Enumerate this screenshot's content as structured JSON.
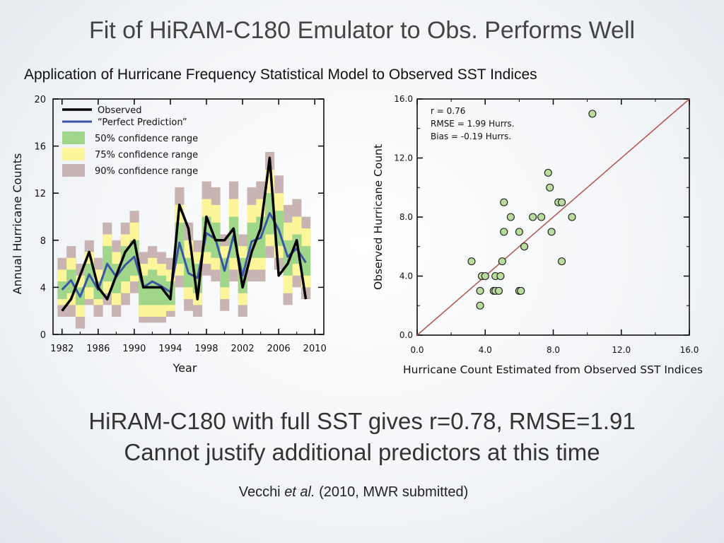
{
  "slide": {
    "title": "Fit of HiRAM-C180 Emulator to Obs. Performs Well",
    "figure_title": "Application of Hurricane Frequency Statistical Model to Observed SST Indices",
    "line1": "HiRAM-C180 with full SST gives r=0.78, RMSE=1.91",
    "line2": "Cannot justify additional predictors at this time",
    "citation_author": "Vecchi ",
    "citation_etal": "et al.",
    "citation_rest": " (2010, MWR submitted)"
  },
  "chart_data": [
    {
      "type": "line",
      "xlabel": "Year",
      "ylabel": "Annual Hurricane Counts",
      "xlim": [
        1981,
        2011
      ],
      "ylim": [
        0,
        20
      ],
      "x_ticks": [
        1982,
        1986,
        1990,
        1994,
        1998,
        2002,
        2006,
        2010
      ],
      "y_ticks": [
        0,
        4,
        8,
        12,
        16,
        20
      ],
      "x": [
        1982,
        1983,
        1984,
        1985,
        1986,
        1987,
        1988,
        1989,
        1990,
        1991,
        1992,
        1993,
        1994,
        1995,
        1996,
        1997,
        1998,
        1999,
        2000,
        2001,
        2002,
        2003,
        2004,
        2005,
        2006,
        2007,
        2008,
        2009
      ],
      "series": [
        {
          "name": "Observed",
          "color": "#000000",
          "values": [
            2,
            3,
            5,
            7,
            4,
            3,
            5,
            7,
            8,
            4,
            4,
            4,
            3,
            11,
            9,
            3,
            10,
            8,
            8,
            9,
            4,
            7,
            9,
            15,
            5,
            6,
            8,
            3
          ]
        },
        {
          "name": "“Perfect Prediction”",
          "color": "#3a55a4",
          "values": [
            3.8,
            4.6,
            3.2,
            5.1,
            3.8,
            6.0,
            4.9,
            5.9,
            6.6,
            4.0,
            4.5,
            4.1,
            3.6,
            7.8,
            5.2,
            4.8,
            8.6,
            8.1,
            5.4,
            8.4,
            5.0,
            7.9,
            8.2,
            10.3,
            8.9,
            6.6,
            7.3,
            6.1
          ]
        }
      ],
      "bands": [
        {
          "name": "50% confidence range",
          "color": "#9fd68a",
          "lower": [
            3,
            3.5,
            2.5,
            4,
            3,
            4.5,
            3.5,
            4.5,
            5,
            2.5,
            2.5,
            2.5,
            2.5,
            6,
            4,
            3.5,
            7,
            6.5,
            4,
            6.5,
            3.5,
            6.5,
            6.5,
            8.5,
            7.5,
            5,
            6,
            5
          ],
          "upper": [
            4.5,
            5.5,
            4,
            6,
            4.5,
            7.5,
            6,
            7.5,
            8,
            5,
            5.5,
            5,
            4.5,
            9.5,
            6.5,
            6,
            10,
            9.5,
            6.5,
            10,
            6.5,
            9.5,
            10,
            12,
            10.5,
            8,
            8.5,
            7.5
          ]
        },
        {
          "name": "75% confidence range",
          "color": "#fdf59a",
          "lower": [
            2.5,
            2.5,
            1.5,
            3,
            2.5,
            3.5,
            2.5,
            3.5,
            4.5,
            1.5,
            1.5,
            1.5,
            2,
            5,
            3,
            2.5,
            6,
            5.5,
            3,
            5.5,
            2.5,
            5.5,
            5.5,
            7.5,
            6.5,
            3.5,
            5,
            4
          ],
          "upper": [
            5.5,
            6.5,
            5,
            7,
            5.5,
            8.5,
            7,
            8.5,
            9.5,
            6,
            6.5,
            6,
            5.5,
            11,
            8,
            7,
            11.5,
            11,
            7.5,
            11.5,
            7.5,
            11,
            11.5,
            14,
            12,
            9.5,
            10,
            9
          ]
        },
        {
          "name": "90% confidence range",
          "color": "#c9b4b4",
          "lower": [
            1.5,
            1.5,
            0.5,
            2.5,
            1.5,
            2.5,
            1.5,
            2.5,
            3.5,
            1,
            1,
            1,
            1.5,
            4,
            2,
            1.5,
            5,
            4.5,
            2,
            4.5,
            1.5,
            4.5,
            4.5,
            6.5,
            5.5,
            2.5,
            4,
            3
          ],
          "upper": [
            6.5,
            7.5,
            6,
            8,
            6.5,
            9.5,
            8,
            9.5,
            10.5,
            7,
            7.5,
            7,
            6.5,
            12.5,
            9.5,
            8,
            13,
            12.5,
            8.5,
            13,
            8.5,
            12.5,
            13,
            15.5,
            13.5,
            11,
            11.5,
            10
          ]
        }
      ]
    },
    {
      "type": "scatter",
      "xlabel": "Hurricane Count Estimated from Observed SST Indices",
      "ylabel": "Observed Hurricane Count",
      "xlim": [
        0,
        16
      ],
      "ylim": [
        0,
        16
      ],
      "x_ticks": [
        0,
        4,
        8,
        12,
        16
      ],
      "y_ticks": [
        0,
        4,
        8,
        12,
        16
      ],
      "tick_labels": [
        "0.0",
        "4.0",
        "8.0",
        "12.0",
        "16.0"
      ],
      "annotations": [
        "r = 0.76",
        "RMSE = 1.99 Hurrs.",
        "Bias = -0.19 Hurrs."
      ],
      "line": {
        "from": [
          0,
          0
        ],
        "to": [
          16,
          16
        ],
        "color": "#b5524f"
      },
      "point_fill": "#b9dc9c",
      "points": [
        [
          3.2,
          5
        ],
        [
          3.7,
          2
        ],
        [
          3.7,
          3
        ],
        [
          3.8,
          4
        ],
        [
          4.0,
          4
        ],
        [
          4.5,
          3
        ],
        [
          4.6,
          3
        ],
        [
          4.6,
          4
        ],
        [
          4.8,
          3
        ],
        [
          4.9,
          4
        ],
        [
          5.0,
          5
        ],
        [
          5.1,
          7
        ],
        [
          5.1,
          9
        ],
        [
          5.5,
          8
        ],
        [
          6.0,
          3
        ],
        [
          6.0,
          7
        ],
        [
          6.1,
          3
        ],
        [
          6.3,
          6
        ],
        [
          6.8,
          8
        ],
        [
          7.3,
          8
        ],
        [
          7.7,
          11
        ],
        [
          7.8,
          10
        ],
        [
          7.9,
          7
        ],
        [
          8.3,
          9
        ],
        [
          8.5,
          9
        ],
        [
          8.5,
          5
        ],
        [
          9.1,
          8
        ],
        [
          10.3,
          15
        ]
      ]
    }
  ]
}
